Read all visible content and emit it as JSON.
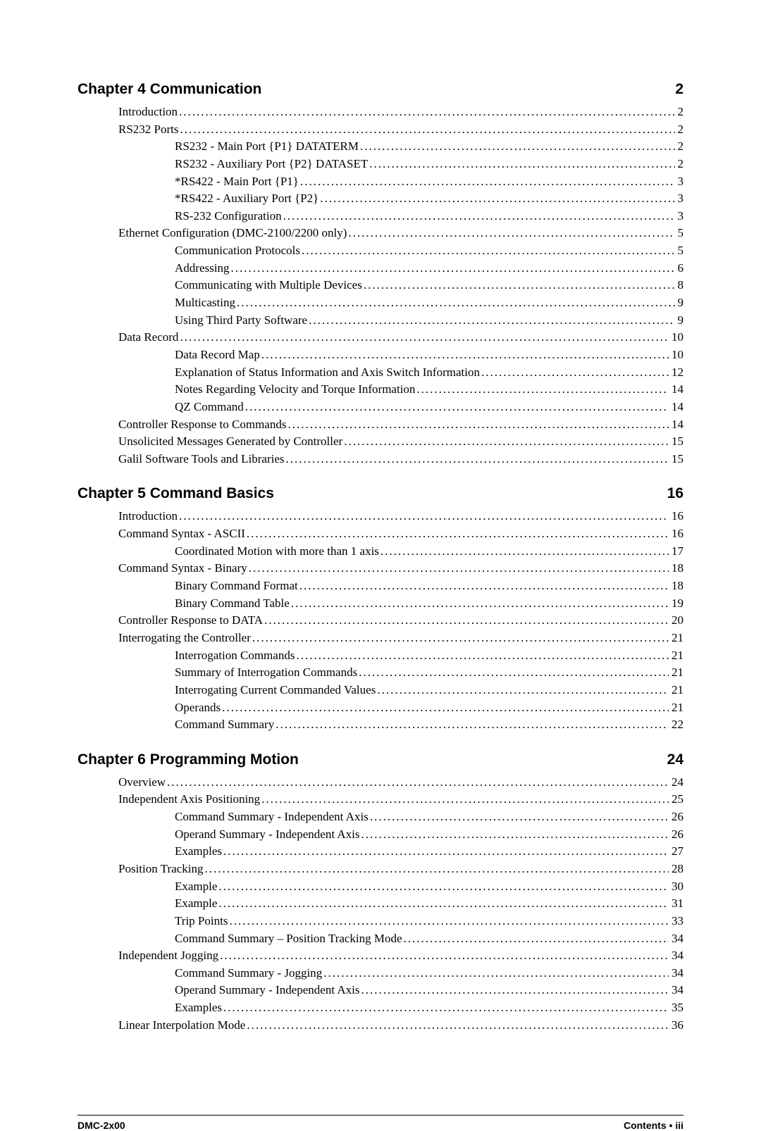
{
  "chapters": [
    {
      "title": "Chapter 4 Communication",
      "page": "2",
      "entries": [
        {
          "level": 1,
          "text": "Introduction",
          "page": "2"
        },
        {
          "level": 1,
          "text": "RS232 Ports",
          "page": "2"
        },
        {
          "level": 2,
          "text": "RS232 - Main Port {P1} DATATERM",
          "page": "2"
        },
        {
          "level": 2,
          "text": "RS232 - Auxiliary Port {P2}    DATASET",
          "page": "2"
        },
        {
          "level": 2,
          "text": "*RS422 - Main Port {P1}",
          "page": "3"
        },
        {
          "level": 2,
          "text": "*RS422 - Auxiliary Port {P2}",
          "page": "3"
        },
        {
          "level": 2,
          "text": "RS-232 Configuration",
          "page": "3"
        },
        {
          "level": 1,
          "text": "Ethernet Configuration (DMC-2100/2200 only)",
          "page": "5"
        },
        {
          "level": 2,
          "text": "Communication Protocols",
          "page": "5"
        },
        {
          "level": 2,
          "text": "Addressing",
          "page": "6"
        },
        {
          "level": 2,
          "text": "Communicating with Multiple Devices",
          "page": "8"
        },
        {
          "level": 2,
          "text": "Multicasting",
          "page": "9"
        },
        {
          "level": 2,
          "text": "Using Third Party Software",
          "page": "9"
        },
        {
          "level": 1,
          "text": "Data Record",
          "page": "10"
        },
        {
          "level": 2,
          "text": "Data Record Map",
          "page": "10"
        },
        {
          "level": 2,
          "text": "Explanation of Status Information and Axis Switch Information",
          "page": "12"
        },
        {
          "level": 2,
          "text": "Notes Regarding Velocity and Torque Information",
          "page": "14"
        },
        {
          "level": 2,
          "text": "QZ Command",
          "page": "14"
        },
        {
          "level": 1,
          "text": "Controller Response to Commands",
          "page": "14"
        },
        {
          "level": 1,
          "text": "Unsolicited Messages Generated by Controller",
          "page": "15"
        },
        {
          "level": 1,
          "text": "Galil Software Tools and Libraries",
          "page": "15"
        }
      ]
    },
    {
      "title": "Chapter 5  Command Basics",
      "page": "16",
      "entries": [
        {
          "level": 1,
          "text": "Introduction",
          "page": "16"
        },
        {
          "level": 1,
          "text": "Command Syntax - ASCII",
          "page": "16"
        },
        {
          "level": 2,
          "text": "Coordinated Motion with more than 1 axis",
          "page": "17"
        },
        {
          "level": 1,
          "text": "Command Syntax - Binary",
          "page": "18"
        },
        {
          "level": 2,
          "text": "Binary Command Format",
          "page": "18"
        },
        {
          "level": 2,
          "text": "Binary Command Table",
          "page": "19"
        },
        {
          "level": 1,
          "text": "Controller Response to DATA",
          "page": "20"
        },
        {
          "level": 1,
          "text": "Interrogating the Controller",
          "page": "21"
        },
        {
          "level": 2,
          "text": "Interrogation Commands",
          "page": "21"
        },
        {
          "level": 2,
          "text": "Summary of Interrogation Commands",
          "page": "21"
        },
        {
          "level": 2,
          "text": "Interrogating Current Commanded Values",
          "page": "21"
        },
        {
          "level": 2,
          "text": "Operands",
          "page": "21"
        },
        {
          "level": 2,
          "text": "Command Summary",
          "page": "22"
        }
      ]
    },
    {
      "title": "Chapter 6  Programming Motion",
      "page": "24",
      "entries": [
        {
          "level": 1,
          "text": "Overview",
          "page": "24"
        },
        {
          "level": 1,
          "text": "Independent Axis Positioning",
          "page": "25"
        },
        {
          "level": 2,
          "text": "Command Summary - Independent Axis",
          "page": "26"
        },
        {
          "level": 2,
          "text": "Operand Summary - Independent Axis",
          "page": "26"
        },
        {
          "level": 2,
          "text": "Examples",
          "page": "27"
        },
        {
          "level": 1,
          "text": "Position Tracking",
          "page": "28"
        },
        {
          "level": 2,
          "text": "Example",
          "page": "30"
        },
        {
          "level": 2,
          "text": "Example",
          "page": "31"
        },
        {
          "level": 2,
          "text": "Trip Points",
          "page": "33"
        },
        {
          "level": 2,
          "text": "Command Summary – Position Tracking Mode",
          "page": "34"
        },
        {
          "level": 1,
          "text": "Independent Jogging",
          "page": "34"
        },
        {
          "level": 2,
          "text": "Command Summary - Jogging",
          "page": "34"
        },
        {
          "level": 2,
          "text": "Operand Summary - Independent Axis",
          "page": "34"
        },
        {
          "level": 2,
          "text": "Examples",
          "page": "35"
        },
        {
          "level": 1,
          "text": "Linear Interpolation Mode",
          "page": "36"
        }
      ]
    }
  ],
  "footer": {
    "left": "DMC-2x00",
    "right_label": "Contents",
    "right_bullet": "•",
    "right_page": "iii"
  }
}
